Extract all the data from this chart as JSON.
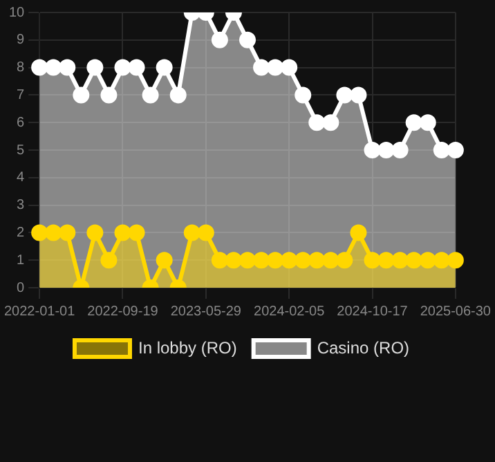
{
  "chart_data": {
    "type": "area",
    "categories": [
      "2022-01-01",
      null,
      null,
      null,
      null,
      null,
      "2022-09-19",
      null,
      null,
      null,
      null,
      null,
      "2023-05-29",
      null,
      null,
      null,
      null,
      null,
      "2024-02-05",
      null,
      null,
      null,
      null,
      null,
      "2024-10-17",
      null,
      null,
      null,
      null,
      null,
      "2025-06-30"
    ],
    "series": [
      {
        "name": "In lobby (RO)",
        "color": "#ffd700",
        "values": [
          2,
          2,
          2,
          0,
          2,
          1,
          2,
          2,
          0,
          1,
          0,
          2,
          2,
          1,
          1,
          1,
          1,
          1,
          1,
          1,
          1,
          1,
          1,
          2,
          1,
          1,
          1,
          1,
          1,
          1,
          1
        ]
      },
      {
        "name": "Casino (RO)",
        "color": "#ffffff",
        "values": [
          8,
          8,
          8,
          7,
          8,
          7,
          8,
          8,
          7,
          8,
          7,
          10,
          10,
          9,
          10,
          9,
          8,
          8,
          8,
          7,
          6,
          6,
          7,
          7,
          5,
          5,
          5,
          6,
          6,
          5,
          5
        ]
      }
    ],
    "ylim": [
      0,
      10
    ],
    "yticks": [
      0,
      1,
      2,
      3,
      4,
      5,
      6,
      7,
      8,
      9,
      10
    ],
    "grid": true,
    "legend": "bottom",
    "marker": "circle"
  }
}
